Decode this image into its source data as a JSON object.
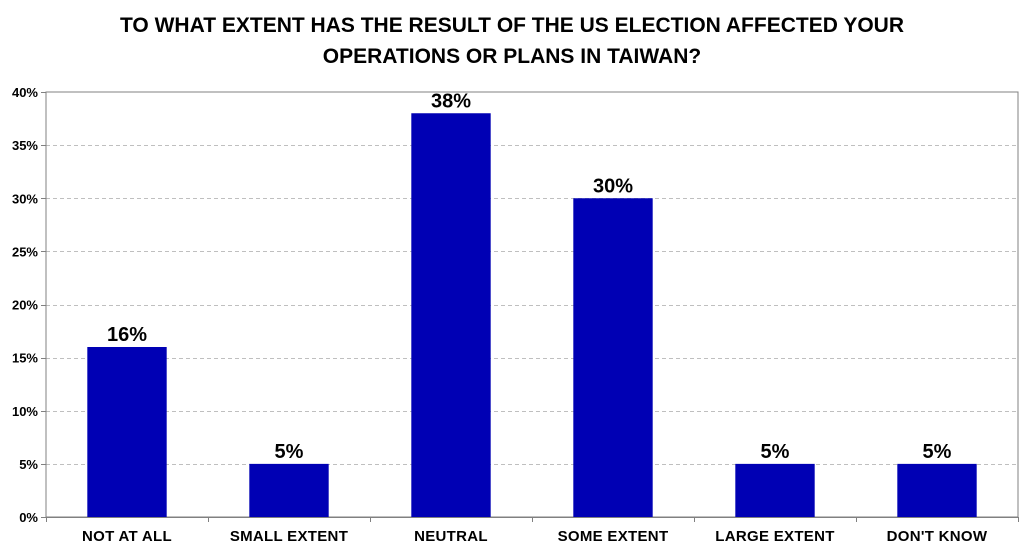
{
  "chart_data": {
    "type": "bar",
    "title_lines": [
      "TO WHAT EXTENT HAS THE RESULT OF THE US ELECTION AFFECTED YOUR",
      "OPERATIONS OR PLANS IN TAIWAN?"
    ],
    "xlabel": "",
    "ylabel": "",
    "categories": [
      "NOT AT ALL",
      "SMALL EXTENT",
      "NEUTRAL",
      "SOME EXTENT",
      "LARGE EXTENT",
      "DON'T KNOW"
    ],
    "values": [
      16,
      5,
      38,
      30,
      5,
      5
    ],
    "data_labels": [
      "16%",
      "5%",
      "38%",
      "30%",
      "5%",
      "5%"
    ],
    "ylim": [
      0,
      40
    ],
    "y_ticks": [
      0,
      5,
      10,
      15,
      20,
      25,
      30,
      35,
      40
    ],
    "y_tick_labels": [
      "0%",
      "5%",
      "10%",
      "15%",
      "20%",
      "25%",
      "30%",
      "35%",
      "40%"
    ],
    "grid": true,
    "legend": "none",
    "colors": {
      "bar": "#0000B4",
      "grid": "#BFBFBF",
      "axis": "#808080"
    }
  }
}
